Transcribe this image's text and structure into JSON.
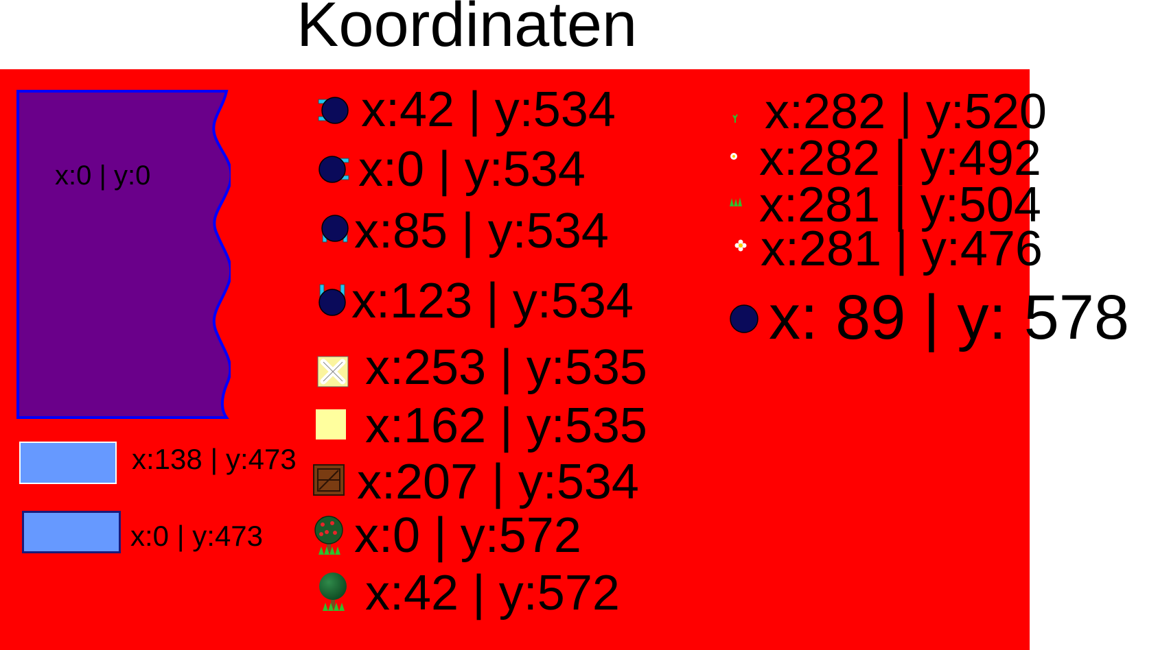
{
  "title": "Koordinaten",
  "colors": {
    "background": "#ff0000",
    "water_fill": "#6a008a",
    "water_border": "#0000ff",
    "platform_fill": "#6699ff",
    "ball_blue": "#0a0a5a",
    "cyan": "#22c5f0"
  },
  "water": {
    "icon": "water-area",
    "label": "x:0 | y:0"
  },
  "platforms": [
    {
      "icon": "light-blue-platform-white-border",
      "label": "x:138 | y:473"
    },
    {
      "icon": "light-blue-platform-dark-border",
      "label": "x:0 | y:473"
    }
  ],
  "sprites": [
    {
      "icon": "player-facing-left",
      "label": "x:42 | y:534"
    },
    {
      "icon": "player-facing-right",
      "label": "x:0 | y:534"
    },
    {
      "icon": "player-facing-down",
      "label": "x:85 | y:534"
    },
    {
      "icon": "player-facing-up",
      "label": "x:123 | y:534"
    },
    {
      "icon": "crossed-bones-tile",
      "label": "x:253 | y:535"
    },
    {
      "icon": "yellow-tile",
      "label": "x:162 | y:535"
    },
    {
      "icon": "wooden-crate",
      "label": "x:207 | y:534"
    },
    {
      "icon": "apple-tree",
      "label": "x:0 | y:572"
    },
    {
      "icon": "green-tree",
      "label": "x:42 | y:572"
    }
  ],
  "small_items": [
    {
      "icon": "tiny-sprout",
      "label": "x:282 | y:520"
    },
    {
      "icon": "tiny-flower",
      "label": "x:282 | y:492"
    },
    {
      "icon": "grass-tuft",
      "label": "x:281 | y:504"
    },
    {
      "icon": "white-flower",
      "label": "x:281 | y:476"
    }
  ],
  "ball": {
    "icon": "blue-ball",
    "label": "x: 89 | y: 578"
  }
}
